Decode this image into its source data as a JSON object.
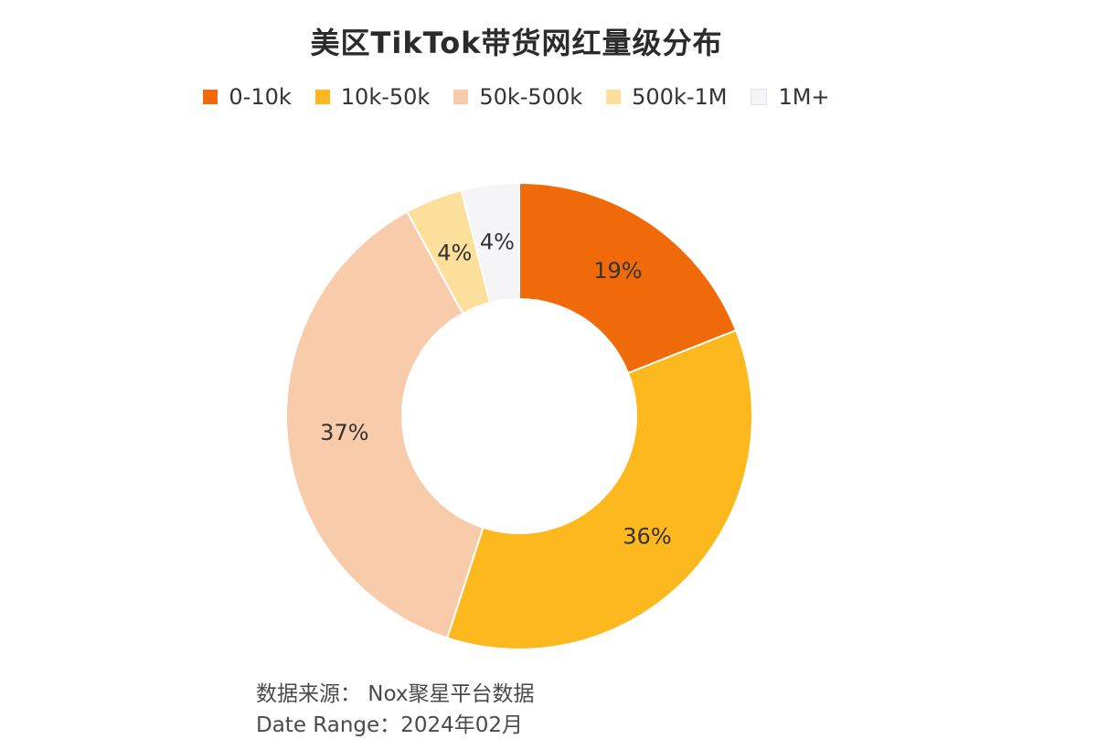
{
  "title": "美区TikTok带货网红量级分布",
  "footer": {
    "source": "数据来源： Nox聚星平台数据",
    "date_range": "Date Range：2024年02月"
  },
  "chart_data": {
    "type": "pie",
    "title": "美区TikTok带货网红量级分布",
    "legend_position": "top",
    "donut": true,
    "categories": [
      "0-10k",
      "10k-50k",
      "50k-500k",
      "500k-1M",
      "1M+"
    ],
    "values": [
      19,
      36,
      37,
      4,
      4
    ],
    "labels": [
      "19%",
      "36%",
      "37%",
      "4%",
      "4%"
    ],
    "colors": [
      "#F06A0A",
      "#FCB81C",
      "#F8CBAA",
      "#FCDF9A",
      "#F5F4F7"
    ]
  }
}
